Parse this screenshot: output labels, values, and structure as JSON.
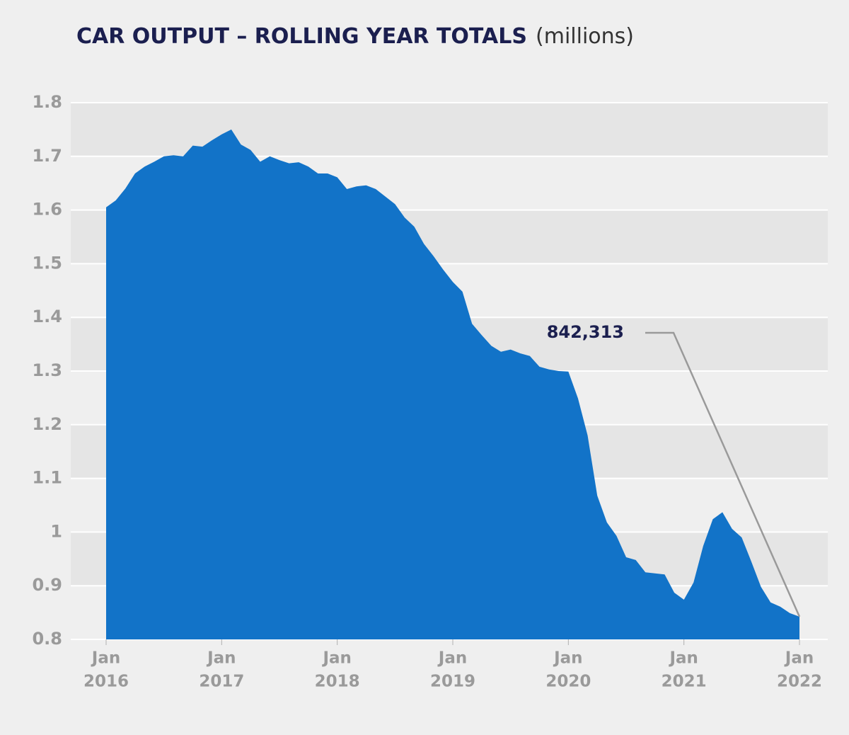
{
  "chart_data": {
    "type": "area",
    "title": "CAR OUTPUT – ROLLING YEAR TOTALS",
    "subtitle": "(millions)",
    "annotation": "842,313",
    "color": "#1273c8",
    "x": [
      "2016-01",
      "2016-02",
      "2016-03",
      "2016-04",
      "2016-05",
      "2016-06",
      "2016-07",
      "2016-08",
      "2016-09",
      "2016-10",
      "2016-11",
      "2016-12",
      "2017-01",
      "2017-02",
      "2017-03",
      "2017-04",
      "2017-05",
      "2017-06",
      "2017-07",
      "2017-08",
      "2017-09",
      "2017-10",
      "2017-11",
      "2017-12",
      "2018-01",
      "2018-02",
      "2018-03",
      "2018-04",
      "2018-05",
      "2018-06",
      "2018-07",
      "2018-08",
      "2018-09",
      "2018-10",
      "2018-11",
      "2018-12",
      "2019-01",
      "2019-02",
      "2019-03",
      "2019-04",
      "2019-05",
      "2019-06",
      "2019-07",
      "2019-08",
      "2019-09",
      "2019-10",
      "2019-11",
      "2019-12",
      "2020-01",
      "2020-02",
      "2020-03",
      "2020-04",
      "2020-05",
      "2020-06",
      "2020-07",
      "2020-08",
      "2020-09",
      "2020-10",
      "2020-11",
      "2020-12",
      "2021-01",
      "2021-02",
      "2021-03",
      "2021-04",
      "2021-05",
      "2021-06",
      "2021-07",
      "2021-08",
      "2021-09",
      "2021-10",
      "2021-11",
      "2021-12",
      "2022-01"
    ],
    "values": [
      1.605,
      1.618,
      1.64,
      1.668,
      1.681,
      1.69,
      1.7,
      1.702,
      1.7,
      1.72,
      1.718,
      1.73,
      1.741,
      1.75,
      1.722,
      1.712,
      1.69,
      1.7,
      1.693,
      1.687,
      1.689,
      1.681,
      1.668,
      1.668,
      1.661,
      1.639,
      1.644,
      1.646,
      1.639,
      1.625,
      1.611,
      1.586,
      1.569,
      1.537,
      1.514,
      1.489,
      1.466,
      1.448,
      1.388,
      1.367,
      1.347,
      1.336,
      1.34,
      1.333,
      1.328,
      1.308,
      1.303,
      1.3,
      1.299,
      1.249,
      1.18,
      1.068,
      1.018,
      0.993,
      0.953,
      0.948,
      0.925,
      0.923,
      0.921,
      0.887,
      0.874,
      0.906,
      0.974,
      1.024,
      1.037,
      1.006,
      0.99,
      0.945,
      0.898,
      0.869,
      0.861,
      0.849,
      0.842313
    ],
    "xlim": [
      "2016-01",
      "2022-01"
    ],
    "xticks": [
      {
        "value": "2016-01",
        "label": [
          "Jan",
          "2016"
        ]
      },
      {
        "value": "2017-01",
        "label": [
          "Jan",
          "2017"
        ]
      },
      {
        "value": "2018-01",
        "label": [
          "Jan",
          "2018"
        ]
      },
      {
        "value": "2019-01",
        "label": [
          "Jan",
          "2019"
        ]
      },
      {
        "value": "2020-01",
        "label": [
          "Jan",
          "2020"
        ]
      },
      {
        "value": "2021-01",
        "label": [
          "Jan",
          "2021"
        ]
      },
      {
        "value": "2022-01",
        "label": [
          "Jan",
          "2022"
        ]
      }
    ],
    "ylim": [
      0.8,
      1.8
    ],
    "yticks": [
      {
        "value": 0.8,
        "label": "0.8"
      },
      1.1,
      1.2,
      1.3,
      1.4,
      1.5,
      1.6,
      1.7,
      1.8,
      0.9,
      1
    ],
    "grid": true
  }
}
